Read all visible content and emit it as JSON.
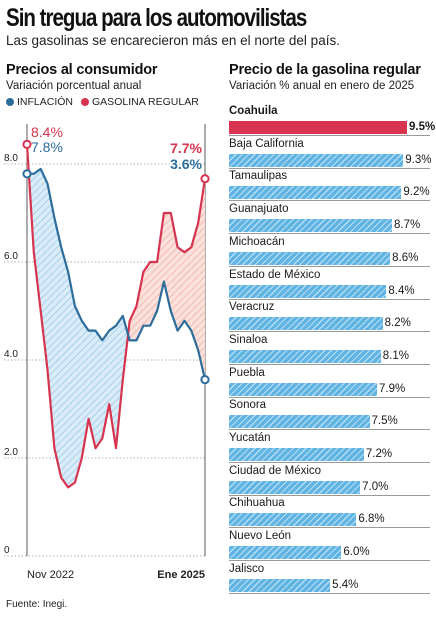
{
  "title": "Sin tregua para los automovilistas",
  "subtitle": "Las gasolinas se encarecieron más en el norte del país.",
  "source": "Fuente: Inegi.",
  "colors": {
    "inflation": "#2c6d9c",
    "gasoline": "#d6344f",
    "bar": "#5fb4e4",
    "bar_highlight": "#d6344f"
  },
  "chart_data": [
    {
      "type": "line",
      "title": "Precios al consumidor",
      "subtitle": "Variación porcentual anual",
      "x_start_label": "Nov 2022",
      "x_end_label": "Ene 2025",
      "ylim": [
        0,
        9
      ],
      "y_ticks": [
        "0",
        "2.0",
        "4.0",
        "6.0",
        "8.0"
      ],
      "y_tick_values": [
        0,
        2,
        4,
        6,
        8
      ],
      "series": [
        {
          "name": "INFLACIÓN",
          "start_label": "7.8%",
          "end_label": "3.6%",
          "values": [
            7.8,
            7.8,
            7.9,
            7.6,
            6.9,
            6.3,
            5.8,
            5.1,
            4.8,
            4.6,
            4.6,
            4.4,
            4.6,
            4.7,
            4.9,
            4.4,
            4.4,
            4.7,
            4.7,
            5.0,
            5.6,
            5.0,
            4.6,
            4.8,
            4.6,
            4.2,
            3.6
          ]
        },
        {
          "name": "GASOLINA REGULAR",
          "start_label": "8.4%",
          "end_label": "7.7%",
          "values": [
            8.4,
            6.2,
            5.0,
            3.8,
            2.2,
            1.6,
            1.4,
            1.5,
            2.0,
            2.8,
            2.2,
            2.4,
            3.1,
            2.2,
            3.6,
            4.8,
            5.1,
            5.8,
            6.0,
            6.0,
            7.0,
            7.0,
            6.3,
            6.2,
            6.3,
            6.8,
            7.7
          ]
        }
      ]
    },
    {
      "type": "bar",
      "title": "Precio de la gasolina regular",
      "subtitle": "Variación % anual en enero de 2025",
      "categories": [
        "Coahuila",
        "Baja California",
        "Tamaulipas",
        "Guanajuato",
        "Michoacán",
        "Estado de México",
        "Veracruz",
        "Sinaloa",
        "Puebla",
        "Sonora",
        "Yucatán",
        "Ciudad de México",
        "Chihuahua",
        "Nuevo León",
        "Jalisco"
      ],
      "values": [
        9.5,
        9.3,
        9.2,
        8.7,
        8.6,
        8.4,
        8.2,
        8.1,
        7.9,
        7.5,
        7.2,
        7.0,
        6.8,
        6.0,
        5.4
      ],
      "value_labels": [
        "9.5%",
        "9.3%",
        "9.2%",
        "8.7%",
        "8.6%",
        "8.4%",
        "8.2%",
        "8.1%",
        "7.9%",
        "7.5%",
        "7.2%",
        "7.0%",
        "6.8%",
        "6.0%",
        "5.4%"
      ],
      "highlight": "Coahuila"
    }
  ]
}
